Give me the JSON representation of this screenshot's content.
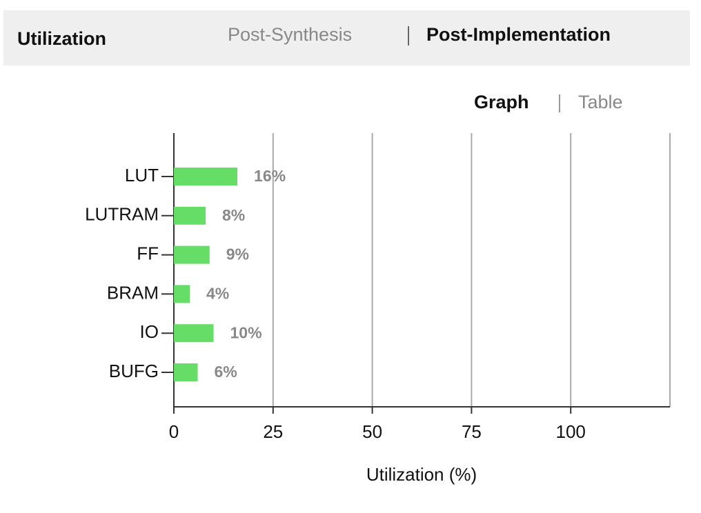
{
  "header": {
    "title": "Utilization",
    "tabs": [
      "Post-Synthesis",
      "Post-Implementation"
    ],
    "active_tab": 1
  },
  "view_toggle": {
    "options": [
      "Graph",
      "Table"
    ],
    "active": 0
  },
  "chart_data": {
    "type": "barh",
    "categories": [
      "LUT",
      "LUTRAM",
      "FF",
      "BRAM",
      "IO",
      "BUFG"
    ],
    "values": [
      16,
      8,
      9,
      4,
      10,
      6
    ],
    "value_labels": [
      "16%",
      "8%",
      "9%",
      "4%",
      "10%",
      "6%"
    ],
    "color": "#66dd66",
    "xlabel": "Utilization (%)",
    "xlim": [
      0,
      125
    ],
    "xticks": [
      0,
      25,
      50,
      75,
      100
    ],
    "grid": true
  }
}
